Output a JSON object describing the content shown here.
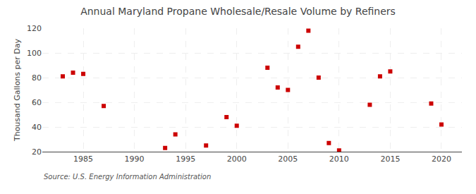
{
  "chart_data": {
    "type": "scatter",
    "title": "Annual Maryland Propane Wholesale/Resale Volume by Refiners",
    "ylabel": "Thousand Gallons per Day",
    "annotations": [
      {
        "text": "Source: U.S. Energy Information Administration"
      }
    ],
    "x": [
      1983,
      1984,
      1985,
      1987,
      1993,
      1994,
      1997,
      1999,
      2000,
      2003,
      2004,
      2005,
      2006,
      2007,
      2008,
      2009,
      2010,
      2013,
      2014,
      2015,
      2019,
      2020
    ],
    "values": [
      81,
      84,
      83,
      57,
      23,
      34,
      25,
      48,
      41,
      88,
      72,
      70,
      105,
      118,
      80,
      27,
      21,
      58,
      81,
      85,
      59,
      42
    ],
    "color": "#cc0000",
    "marker": "square",
    "xlim": [
      1981,
      2022
    ],
    "ylim": [
      20,
      120
    ],
    "xticks": [
      1985,
      1990,
      1995,
      2000,
      2005,
      2010,
      2015,
      2020
    ],
    "yticks": [
      20,
      40,
      60,
      80,
      100,
      120
    ],
    "grid": true
  }
}
